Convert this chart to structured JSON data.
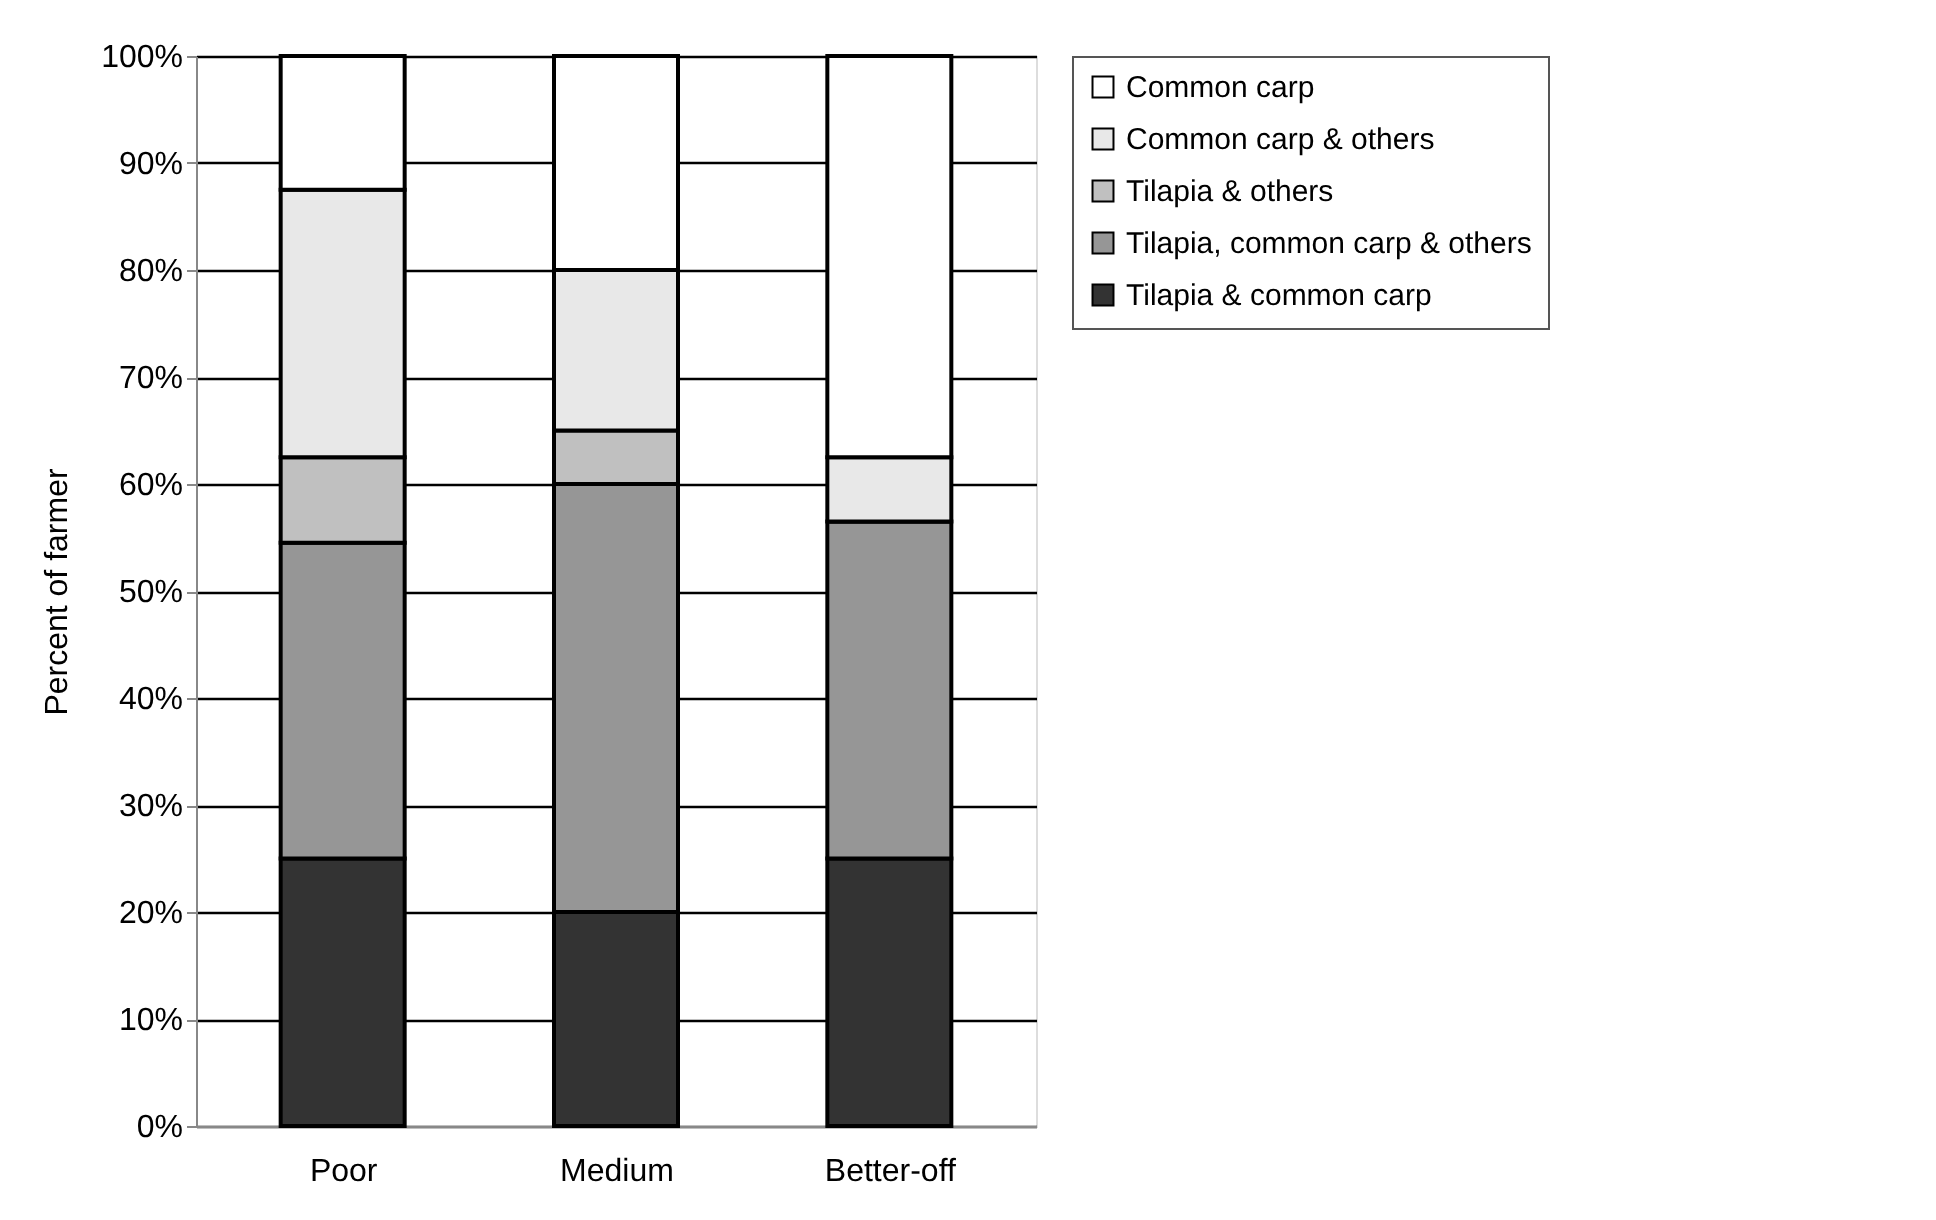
{
  "chart_data": {
    "type": "bar",
    "stacked": true,
    "ylabel": "Percent of farmer",
    "categories": [
      "Poor",
      "Medium",
      "Better-off"
    ],
    "series": [
      {
        "name": "Tilapia & common carp",
        "color": "#333333",
        "values": [
          25,
          20,
          25
        ]
      },
      {
        "name": "Tilapia, common carp & others",
        "color": "#969696",
        "values": [
          29.5,
          40,
          31.5
        ]
      },
      {
        "name": "Tilapia & others",
        "color": "#c0c0c0",
        "values": [
          8,
          5,
          0
        ]
      },
      {
        "name": "Common carp & others",
        "color": "#e8e8e8",
        "values": [
          25,
          15,
          6
        ]
      },
      {
        "name": "Common carp",
        "color": "#ffffff",
        "values": [
          12.5,
          20,
          37.5
        ]
      }
    ],
    "ylim": [
      0,
      100
    ],
    "yticks": [
      {
        "value": 0,
        "label": "0%"
      },
      {
        "value": 10,
        "label": "10%"
      },
      {
        "value": 20,
        "label": "20%"
      },
      {
        "value": 30,
        "label": "30%"
      },
      {
        "value": 40,
        "label": "40%"
      },
      {
        "value": 50,
        "label": "50%"
      },
      {
        "value": 60,
        "label": "60%"
      },
      {
        "value": 70,
        "label": "70%"
      },
      {
        "value": 80,
        "label": "80%"
      },
      {
        "value": 90,
        "label": "90%"
      },
      {
        "value": 100,
        "label": "100%"
      }
    ],
    "grid": "y",
    "legend": "right"
  }
}
